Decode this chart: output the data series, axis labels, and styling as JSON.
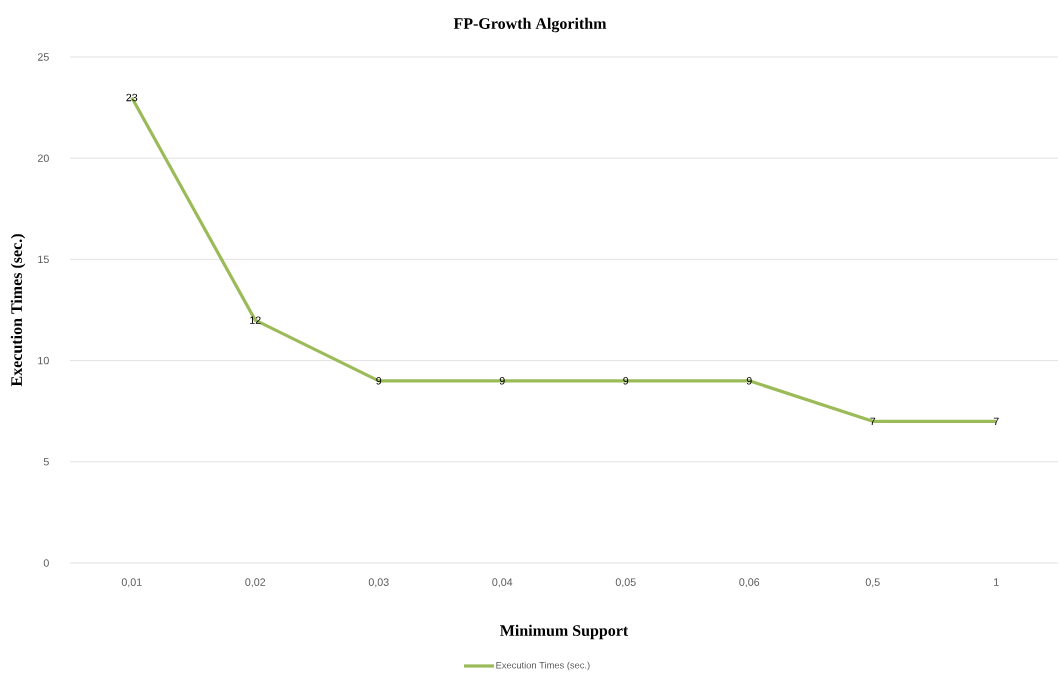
{
  "chart_data": {
    "type": "line",
    "title": "FP-Growth Algorithm",
    "xlabel": "Minimum Support",
    "ylabel": "Execution Times (sec.)",
    "categories": [
      "0,01",
      "0,02",
      "0,03",
      "0,04",
      "0,05",
      "0,06",
      "0,5",
      "1"
    ],
    "series": [
      {
        "name": "Execution Times (sec.)",
        "color": "#9bbb59",
        "values": [
          23,
          12,
          9,
          9,
          9,
          9,
          7,
          7
        ]
      }
    ],
    "ylim": [
      0,
      25
    ],
    "yticks": [
      0,
      5,
      10,
      15,
      20,
      25
    ],
    "grid": "y",
    "legend": "bottom",
    "data_labels": true,
    "marker": "none",
    "line_style": "solid"
  }
}
